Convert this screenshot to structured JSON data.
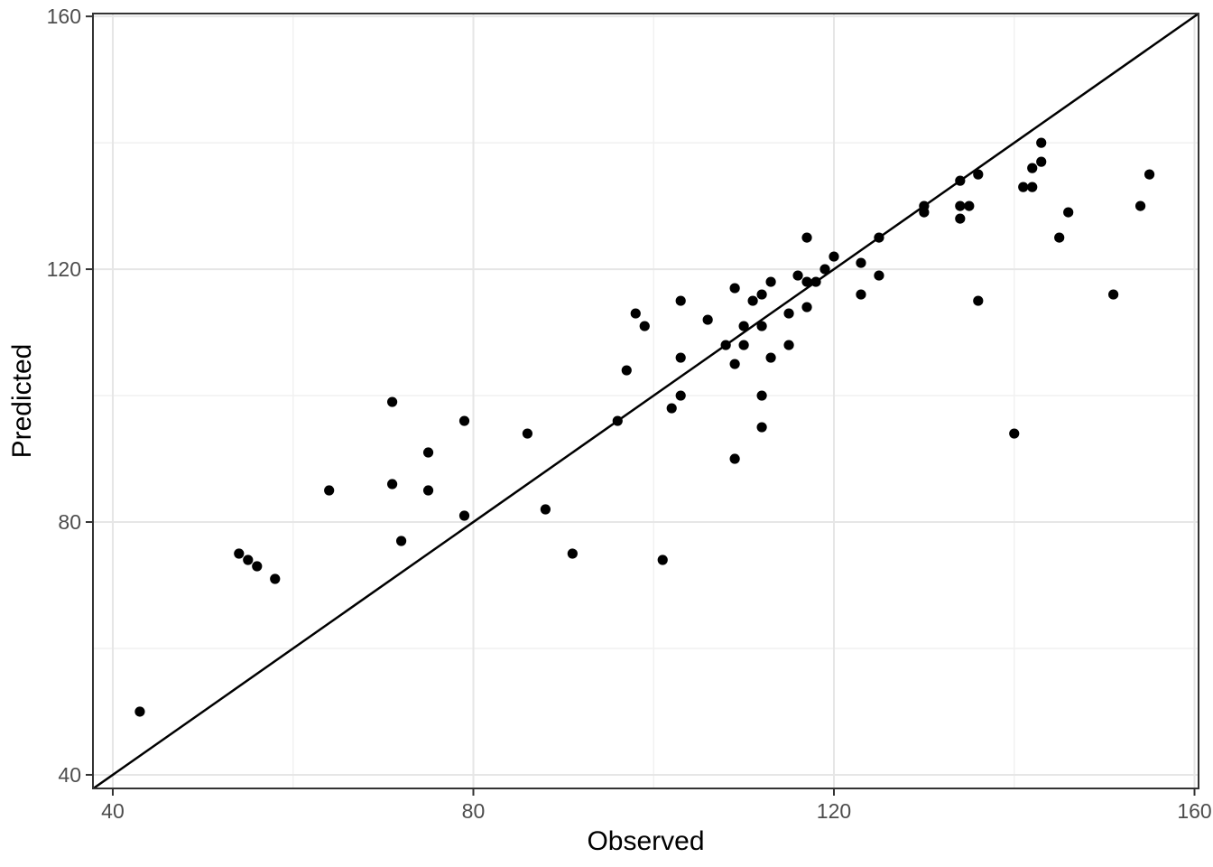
{
  "chart_data": {
    "type": "scatter",
    "title": "",
    "xlabel": "Observed",
    "ylabel": "Predicted",
    "x_ticks": [
      40,
      80,
      120,
      160
    ],
    "y_ticks": [
      40,
      80,
      120,
      160
    ],
    "x_minor_ticks": [
      60,
      100,
      140
    ],
    "y_minor_ticks": [
      60,
      100,
      140
    ],
    "xlim": [
      37.8,
      160.45
    ],
    "ylim": [
      37.85,
      160.45
    ],
    "grid": true,
    "legend_position": "none",
    "identity_line": {
      "slope": 1,
      "intercept": 0
    },
    "points": [
      [
        43,
        50
      ],
      [
        54,
        75
      ],
      [
        55,
        74
      ],
      [
        56,
        73
      ],
      [
        58,
        71
      ],
      [
        64,
        85
      ],
      [
        71,
        86
      ],
      [
        71,
        99
      ],
      [
        72,
        77
      ],
      [
        75,
        85
      ],
      [
        75,
        91
      ],
      [
        79,
        81
      ],
      [
        79,
        96
      ],
      [
        86,
        94
      ],
      [
        88,
        82
      ],
      [
        91,
        75
      ],
      [
        96,
        96
      ],
      [
        97,
        104
      ],
      [
        98,
        113
      ],
      [
        99,
        111
      ],
      [
        101,
        74
      ],
      [
        102,
        98
      ],
      [
        103,
        100
      ],
      [
        103,
        106
      ],
      [
        103,
        115
      ],
      [
        106,
        112
      ],
      [
        108,
        108
      ],
      [
        109,
        90
      ],
      [
        109,
        105
      ],
      [
        109,
        117
      ],
      [
        110,
        108
      ],
      [
        110,
        111
      ],
      [
        111,
        115
      ],
      [
        112,
        95
      ],
      [
        112,
        100
      ],
      [
        112,
        111
      ],
      [
        112,
        116
      ],
      [
        113,
        106
      ],
      [
        113,
        118
      ],
      [
        115,
        108
      ],
      [
        115,
        113
      ],
      [
        116,
        119
      ],
      [
        117,
        114
      ],
      [
        117,
        118
      ],
      [
        117,
        125
      ],
      [
        118,
        118
      ],
      [
        119,
        120
      ],
      [
        120,
        122
      ],
      [
        123,
        116
      ],
      [
        123,
        121
      ],
      [
        125,
        119
      ],
      [
        125,
        125
      ],
      [
        130,
        129
      ],
      [
        130,
        130
      ],
      [
        134,
        128
      ],
      [
        134,
        130
      ],
      [
        134,
        134
      ],
      [
        135,
        130
      ],
      [
        136,
        115
      ],
      [
        136,
        135
      ],
      [
        140,
        94
      ],
      [
        141,
        133
      ],
      [
        142,
        133
      ],
      [
        142,
        136
      ],
      [
        143,
        137
      ],
      [
        143,
        140
      ],
      [
        145,
        125
      ],
      [
        146,
        129
      ],
      [
        151,
        116
      ],
      [
        154,
        130
      ],
      [
        155,
        135
      ]
    ],
    "colors": {
      "point": "#000000",
      "identity_line": "#000000",
      "grid_major": "#e6e6e6",
      "grid_minor": "#f1f1f1",
      "panel_border": "#333333",
      "tick_mark": "#333333",
      "tick_label": "#4d4d4d",
      "axis_title": "#000000",
      "background": "#ffffff"
    }
  }
}
